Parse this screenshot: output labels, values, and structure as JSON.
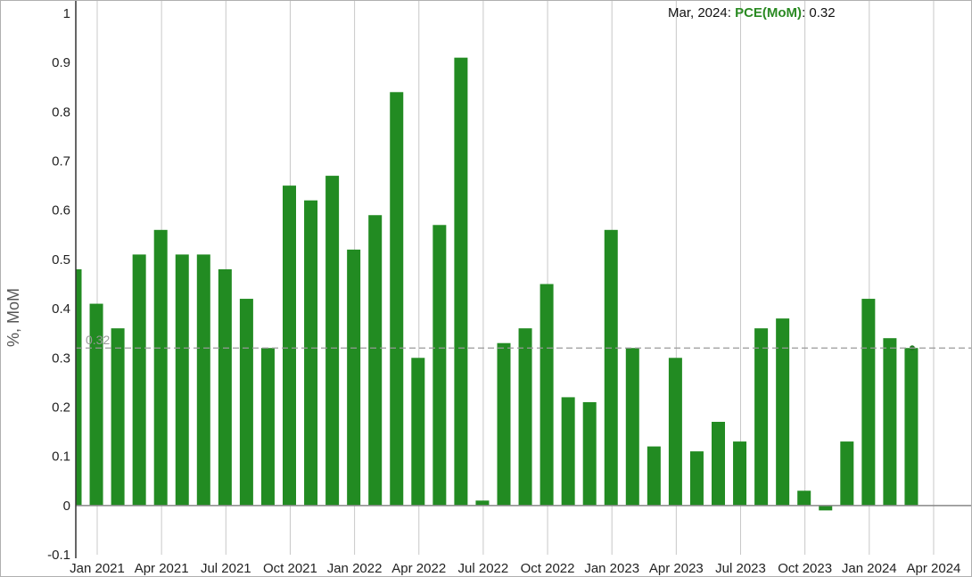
{
  "chart_data": {
    "type": "bar",
    "ylabel": "%, MoM",
    "ylim": [
      -0.1,
      1
    ],
    "yticks": [
      "-0.1",
      "0",
      "0.1",
      "0.2",
      "0.3",
      "0.4",
      "0.5",
      "0.6",
      "0.7",
      "0.8",
      "0.9",
      "1"
    ],
    "xticks": [
      "Jan 2021",
      "Apr 2021",
      "Jul 2021",
      "Oct 2021",
      "Jan 2022",
      "Apr 2022",
      "Jul 2022",
      "Oct 2022",
      "Jan 2023",
      "Apr 2023",
      "Jul 2023",
      "Oct 2023",
      "Jan 2024",
      "Apr 2024"
    ],
    "series": [
      {
        "name": "PCE(MoM)",
        "color": "#228b22",
        "values": [
          0.48,
          0.41,
          0.36,
          0.51,
          0.56,
          0.51,
          0.51,
          0.48,
          0.42,
          0.32,
          0.65,
          0.62,
          0.67,
          0.52,
          0.59,
          0.84,
          0.3,
          0.57,
          0.91,
          0.01,
          0.33,
          0.36,
          0.45,
          0.22,
          0.21,
          0.56,
          0.32,
          0.12,
          0.3,
          0.11,
          0.17,
          0.13,
          0.36,
          0.38,
          0.03,
          -0.01,
          0.13,
          0.42,
          0.34,
          0.32
        ]
      }
    ],
    "reference_line": {
      "value": 0.32,
      "label": "0.32",
      "style": "dashed"
    },
    "grid": "vertical"
  },
  "tooltip": {
    "date": "Mar, 2024",
    "series": "PCE(MoM)",
    "value": "0.32"
  }
}
